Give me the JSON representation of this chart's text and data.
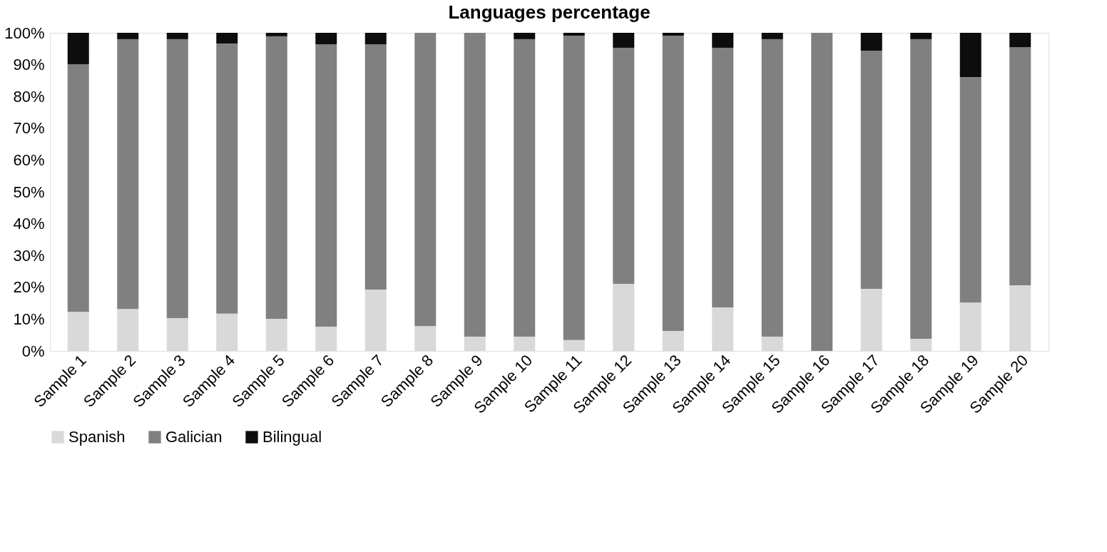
{
  "chart_data": {
    "type": "bar",
    "title": "Languages percentage",
    "stacked": true,
    "legend": "bottom",
    "grid": false,
    "categories": [
      "Sample 1",
      "Sample 2",
      "Sample 3",
      "Sample 4",
      "Sample 5",
      "Sample 6",
      "Sample 7",
      "Sample 8",
      "Sample 9",
      "Sample 10",
      "Sample 11",
      "Sample 12",
      "Sample 13",
      "Sample 14",
      "Sample 15",
      "Sample 16",
      "Sample 17",
      "Sample 18",
      "Sample 19",
      "Sample 20"
    ],
    "series": [
      {
        "name": "Spanish",
        "color": "#d9d9d9",
        "values": [
          12.3,
          13.2,
          10.3,
          11.7,
          10.1,
          7.6,
          19.3,
          7.8,
          4.5,
          4.5,
          3.4,
          21.1,
          6.3,
          13.7,
          4.5,
          0,
          19.5,
          3.8,
          15.2,
          20.6
        ]
      },
      {
        "name": "Galician",
        "color": "#808080",
        "values": [
          77.8,
          84.8,
          87.7,
          84.9,
          88.8,
          88.8,
          77.1,
          92.2,
          95.5,
          93.5,
          95.7,
          74.2,
          92.8,
          81.6,
          93.5,
          100,
          74.9,
          94.2,
          70.9,
          74.9
        ]
      },
      {
        "name": "Bilingual",
        "color": "#0d0d0d",
        "values": [
          9.9,
          2.0,
          2.0,
          3.4,
          1.1,
          3.6,
          3.6,
          0,
          0,
          2.0,
          0.9,
          4.7,
          0.9,
          4.7,
          2.0,
          0,
          5.6,
          2.0,
          13.9,
          4.5
        ]
      }
    ],
    "ylim": [
      0,
      100
    ],
    "yticks": [
      {
        "value": 0,
        "label": "0%"
      },
      {
        "value": 10,
        "label": "10%"
      },
      {
        "value": 20,
        "label": "20%"
      },
      {
        "value": 30,
        "label": "30%"
      },
      {
        "value": 40,
        "label": "40%"
      },
      {
        "value": 50,
        "label": "50%"
      },
      {
        "value": 60,
        "label": "60%"
      },
      {
        "value": 70,
        "label": "70%"
      },
      {
        "value": 80,
        "label": "80%"
      },
      {
        "value": 90,
        "label": "90%"
      },
      {
        "value": 100,
        "label": "100%"
      }
    ]
  }
}
